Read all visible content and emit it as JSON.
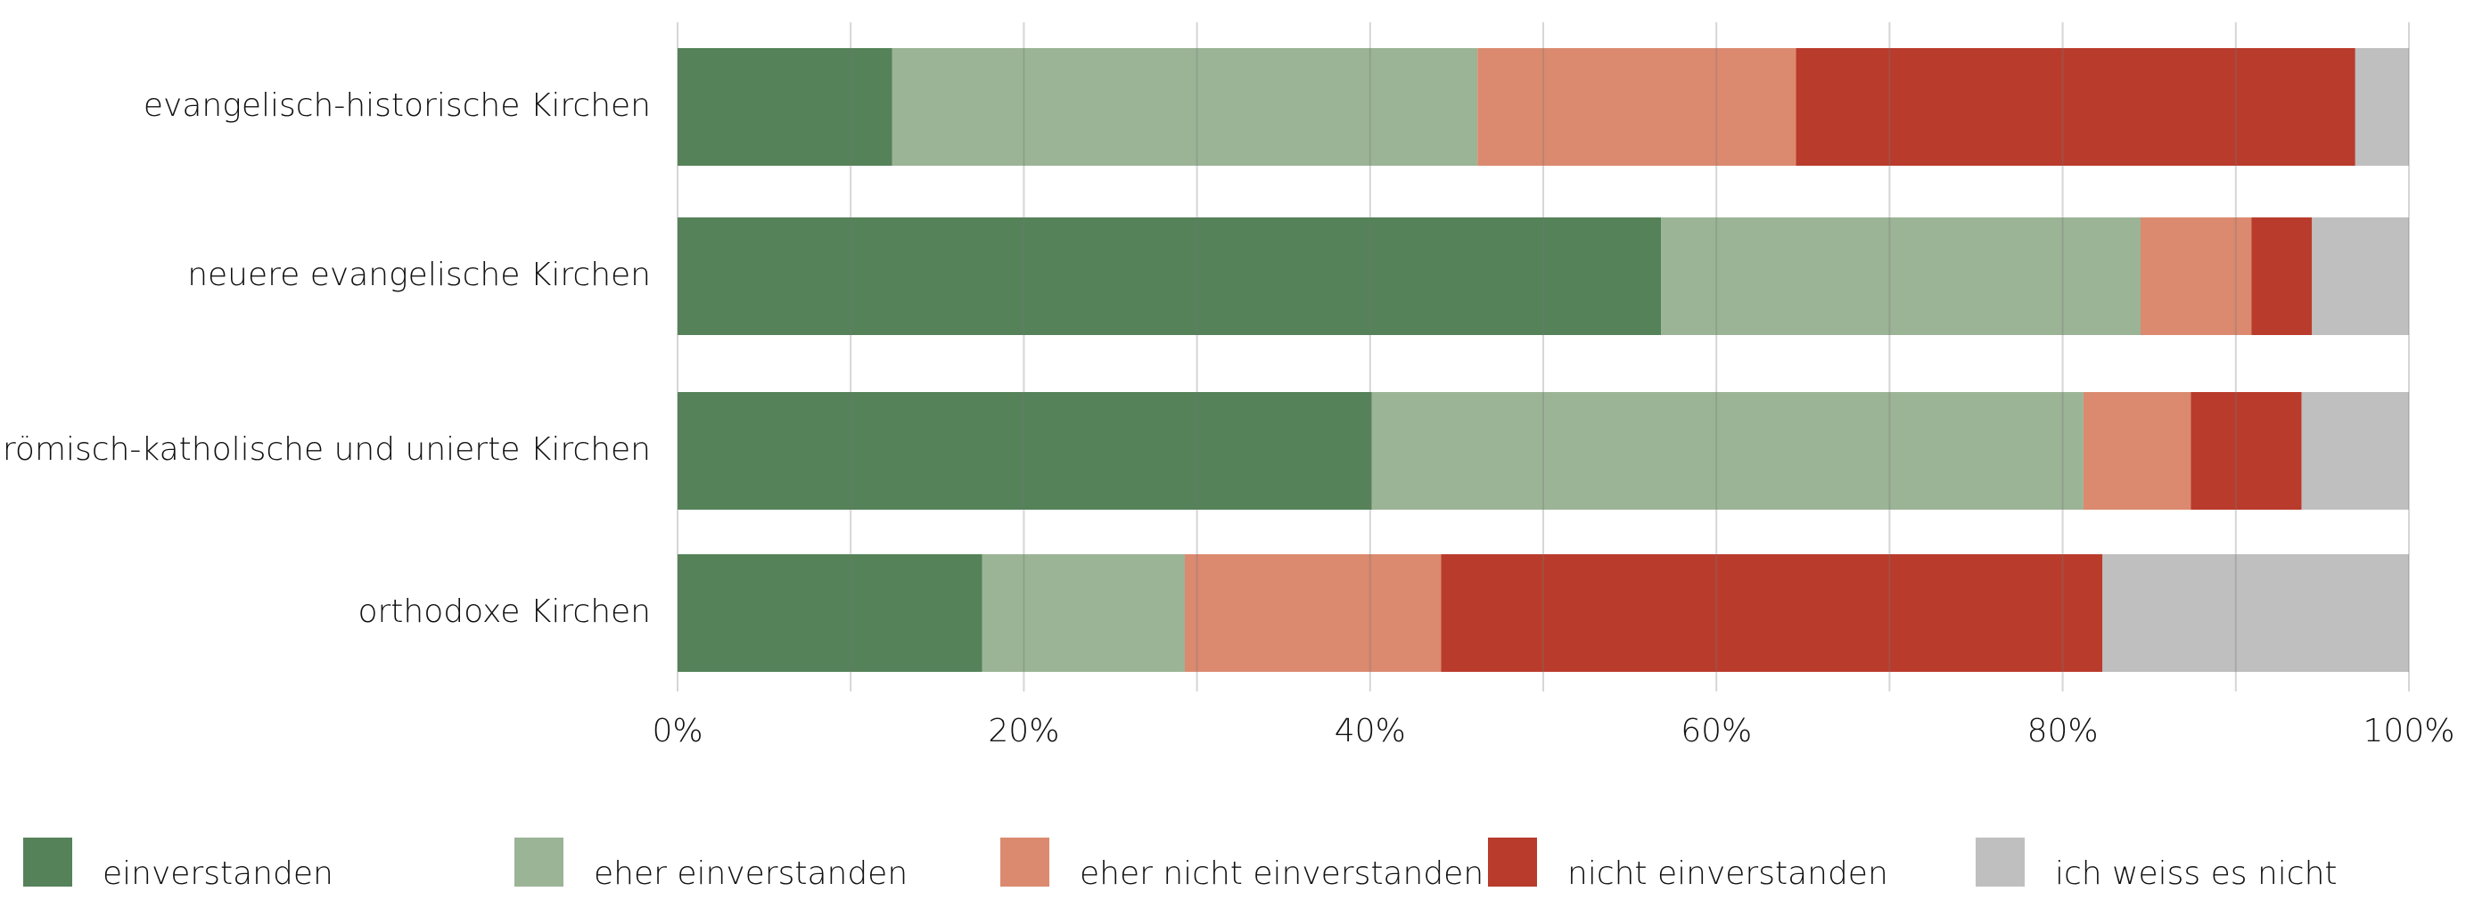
{
  "chart_data": {
    "type": "stacked-barh",
    "categories": [
      "evangelisch-historische Kirchen",
      "neuere evangelische Kirchen",
      "römisch-katholische und unierte Kirchen",
      "orthodoxe Kirchen"
    ],
    "series": [
      {
        "name": "einverstanden",
        "color": "#558259",
        "values": [
          12.4,
          56.8,
          40.1,
          17.6
        ]
      },
      {
        "name": "eher einverstanden",
        "color": "#9bb496",
        "values": [
          33.8,
          27.7,
          41.1,
          11.7
        ]
      },
      {
        "name": "eher nicht einverstanden",
        "color": "#db8a6f",
        "values": [
          18.4,
          6.4,
          6.2,
          14.8
        ]
      },
      {
        "name": "nicht einverstanden",
        "color": "#b93b2c",
        "values": [
          32.3,
          3.5,
          6.4,
          38.2
        ]
      },
      {
        "name": "ich weiss es nicht",
        "color": "#bfbfbf",
        "values": [
          3.1,
          5.6,
          6.2,
          17.7
        ]
      }
    ],
    "xlim": [
      0,
      100
    ],
    "xticks": [
      {
        "value": 0,
        "label": "0%"
      },
      {
        "value": 20,
        "label": "20%"
      },
      {
        "value": 40,
        "label": "40%"
      },
      {
        "value": 60,
        "label": "60%"
      },
      {
        "value": 80,
        "label": "80%"
      },
      {
        "value": 100,
        "label": "100%"
      }
    ],
    "minor_xticks": [
      10,
      30,
      50,
      70,
      90
    ],
    "grid": true,
    "legend": "bottom"
  }
}
